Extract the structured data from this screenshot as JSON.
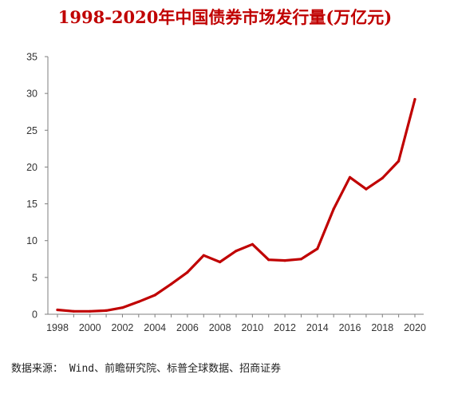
{
  "chart_data": {
    "type": "line",
    "title": "1998-2020年中国债券市场发行量(万亿元)",
    "xlabel": "",
    "ylabel": "",
    "ylim": [
      0,
      35
    ],
    "yticks": [
      0,
      5,
      10,
      15,
      20,
      25,
      30,
      35
    ],
    "xticks": [
      "1998",
      "2000",
      "2002",
      "2004",
      "2006",
      "2008",
      "2010",
      "2012",
      "2014",
      "2016",
      "2018",
      "2020"
    ],
    "grid": false,
    "legend": "none",
    "line_color": "#c00000",
    "x": [
      1998,
      1999,
      2000,
      2001,
      2002,
      2003,
      2004,
      2005,
      2006,
      2007,
      2008,
      2009,
      2010,
      2011,
      2012,
      2013,
      2014,
      2015,
      2016,
      2017,
      2018,
      2019,
      2020
    ],
    "series": [
      {
        "values": [
          0.6,
          0.4,
          0.4,
          0.5,
          0.9,
          1.7,
          2.6,
          4.1,
          5.7,
          8.0,
          7.1,
          8.6,
          9.5,
          7.4,
          7.3,
          7.5,
          8.9,
          14.3,
          18.6,
          17.0,
          18.5,
          20.8,
          29.2
        ]
      }
    ]
  },
  "source_note": "数据来源： Wind、前瞻研究院、标普全球数据、招商证券"
}
